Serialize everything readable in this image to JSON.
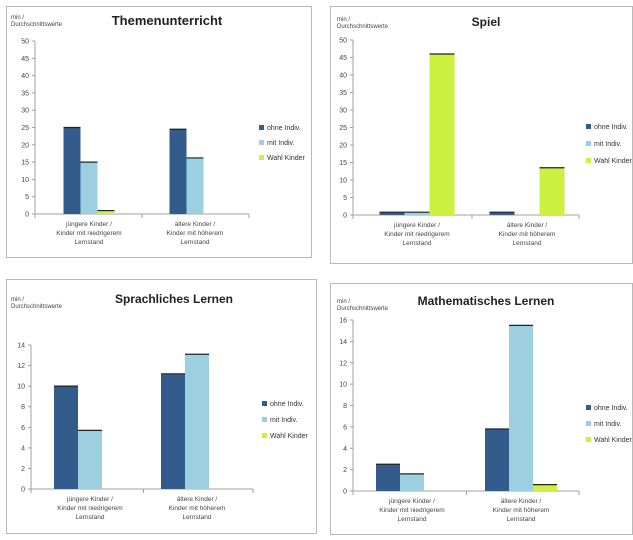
{
  "colors": {
    "ohne_indiv": "#335c8c",
    "mit_indiv": "#9ccfe0",
    "wahl_kinder": "#ccf03f",
    "panel_border": "#b9b9b9",
    "axis": "#a0a0a0"
  },
  "chart_data": [
    {
      "type": "bar",
      "title": "Themenunterricht",
      "ylabel_lines": [
        "min /",
        "Durchschnittswerte"
      ],
      "yticks": [
        "0",
        "5",
        "10",
        "15",
        "20",
        "25",
        "30",
        "35",
        "40",
        "45",
        "50"
      ],
      "ylim": [
        0,
        50
      ],
      "categories": [
        [
          "jüngere Kinder /",
          "Kinder mit niedrigerem",
          "Lernstand"
        ],
        [
          "ältere Kinder /",
          "Kinder mit höherem",
          "Lernstand"
        ]
      ],
      "series": [
        {
          "name": "ohne Indiv.",
          "values": [
            25,
            24.5
          ]
        },
        {
          "name": "mit Indiv.",
          "values": [
            15,
            16.2
          ]
        },
        {
          "name": "Wahl Kinder",
          "values": [
            1,
            null
          ]
        }
      ],
      "legend_position": "right",
      "grid": false
    },
    {
      "type": "bar",
      "title": "Spiel",
      "ylabel_lines": [
        "min /",
        "Durchschnittswerte"
      ],
      "yticks": [
        "0",
        "5",
        "10",
        "15",
        "20",
        "25",
        "30",
        "35",
        "40",
        "45",
        "50"
      ],
      "ylim": [
        0,
        50
      ],
      "categories": [
        [
          "jüngere Kinder /",
          "Kinder mit niedrigerem",
          "Lernstand"
        ],
        [
          "ältere Kinder /",
          "Kinder mit höherem",
          "Lernstand"
        ]
      ],
      "series": [
        {
          "name": "ohne Indiv.",
          "values": [
            0.8,
            0.8
          ]
        },
        {
          "name": "mit Indiv.",
          "values": [
            0.8,
            null
          ]
        },
        {
          "name": "Wahl Kinder",
          "values": [
            46,
            13.5
          ]
        }
      ],
      "legend_position": "right",
      "grid": false
    },
    {
      "type": "bar",
      "title": "Sprachliches Lernen",
      "ylabel_lines": [
        "min /",
        "Durchschnittswerte"
      ],
      "yticks": [
        "0",
        "2",
        "4",
        "6",
        "8",
        "10",
        "12",
        "14"
      ],
      "ylim": [
        0,
        14
      ],
      "categories": [
        [
          "jüngere Kinder /",
          "Kinder mit niedrigerem",
          "Lernstand"
        ],
        [
          "ältere Kinder /",
          "Kinder mit höherem",
          "Lernstand"
        ]
      ],
      "series": [
        {
          "name": "ohne Indiv.",
          "values": [
            10,
            11.2
          ]
        },
        {
          "name": "mit Indiv.",
          "values": [
            5.7,
            13.1
          ]
        },
        {
          "name": "Wahl Kinder",
          "values": [
            null,
            null
          ]
        }
      ],
      "legend_position": "right",
      "grid": false
    },
    {
      "type": "bar",
      "title": "Mathematisches Lernen",
      "ylabel_lines": [
        "min /",
        "Durchschnittswerte"
      ],
      "yticks": [
        "0",
        "2",
        "4",
        "6",
        "8",
        "10",
        "12",
        "14",
        "16"
      ],
      "ylim": [
        0,
        16
      ],
      "categories": [
        [
          "jüngere Kinder /",
          "Kinder mit niedrigerem",
          "Lernstand"
        ],
        [
          "ältere Kinder /",
          "Kinder mit höherem",
          "Lernstand"
        ]
      ],
      "series": [
        {
          "name": "ohne Indiv.",
          "values": [
            2.5,
            5.8
          ]
        },
        {
          "name": "mit Indiv.",
          "values": [
            1.6,
            15.5
          ]
        },
        {
          "name": "Wahl Kinder",
          "values": [
            null,
            0.6
          ]
        }
      ],
      "legend_position": "right",
      "grid": false
    }
  ]
}
